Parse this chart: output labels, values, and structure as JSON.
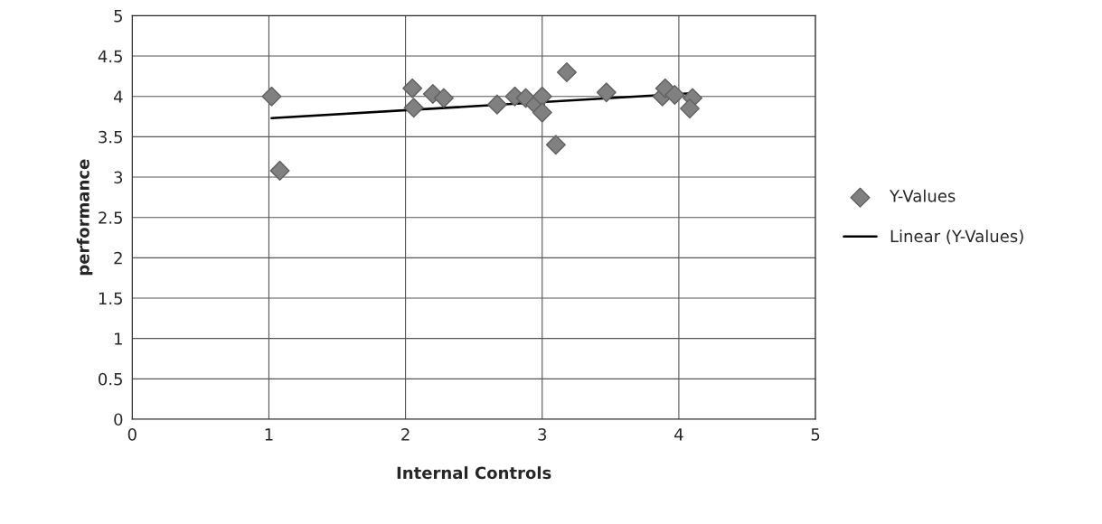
{
  "chart_data": {
    "type": "scatter",
    "xlabel": "Internal Controls",
    "ylabel": "performance",
    "series": [
      {
        "name": "Y-Values",
        "color": "#808080",
        "marker": "diamond",
        "x": [
          1.02,
          1.08,
          2.05,
          2.06,
          2.2,
          2.28,
          2.67,
          2.8,
          2.88,
          2.95,
          3.0,
          3.0,
          3.1,
          3.18,
          3.47,
          3.88,
          3.9,
          3.97,
          4.1,
          4.08
        ],
        "values": [
          4.0,
          3.08,
          4.1,
          3.86,
          4.03,
          3.98,
          3.9,
          4.0,
          3.98,
          3.9,
          4.0,
          3.8,
          3.4,
          4.3,
          4.05,
          4.0,
          4.1,
          4.02,
          3.98,
          3.85
        ]
      },
      {
        "name": "Linear (Y-Values)",
        "type": "line",
        "color": "#000000",
        "marker": "none",
        "x": [
          1.02,
          4.1
        ],
        "values": [
          3.73,
          4.04
        ]
      }
    ],
    "xlim": [
      0,
      5
    ],
    "xticks": [
      0,
      1,
      2,
      3,
      4,
      5
    ],
    "ylim": [
      0,
      5
    ],
    "yticks": [
      0,
      0.5,
      1,
      1.5,
      2,
      2.5,
      3,
      3.5,
      4,
      4.5,
      5
    ],
    "grid": true,
    "legend": "right"
  }
}
